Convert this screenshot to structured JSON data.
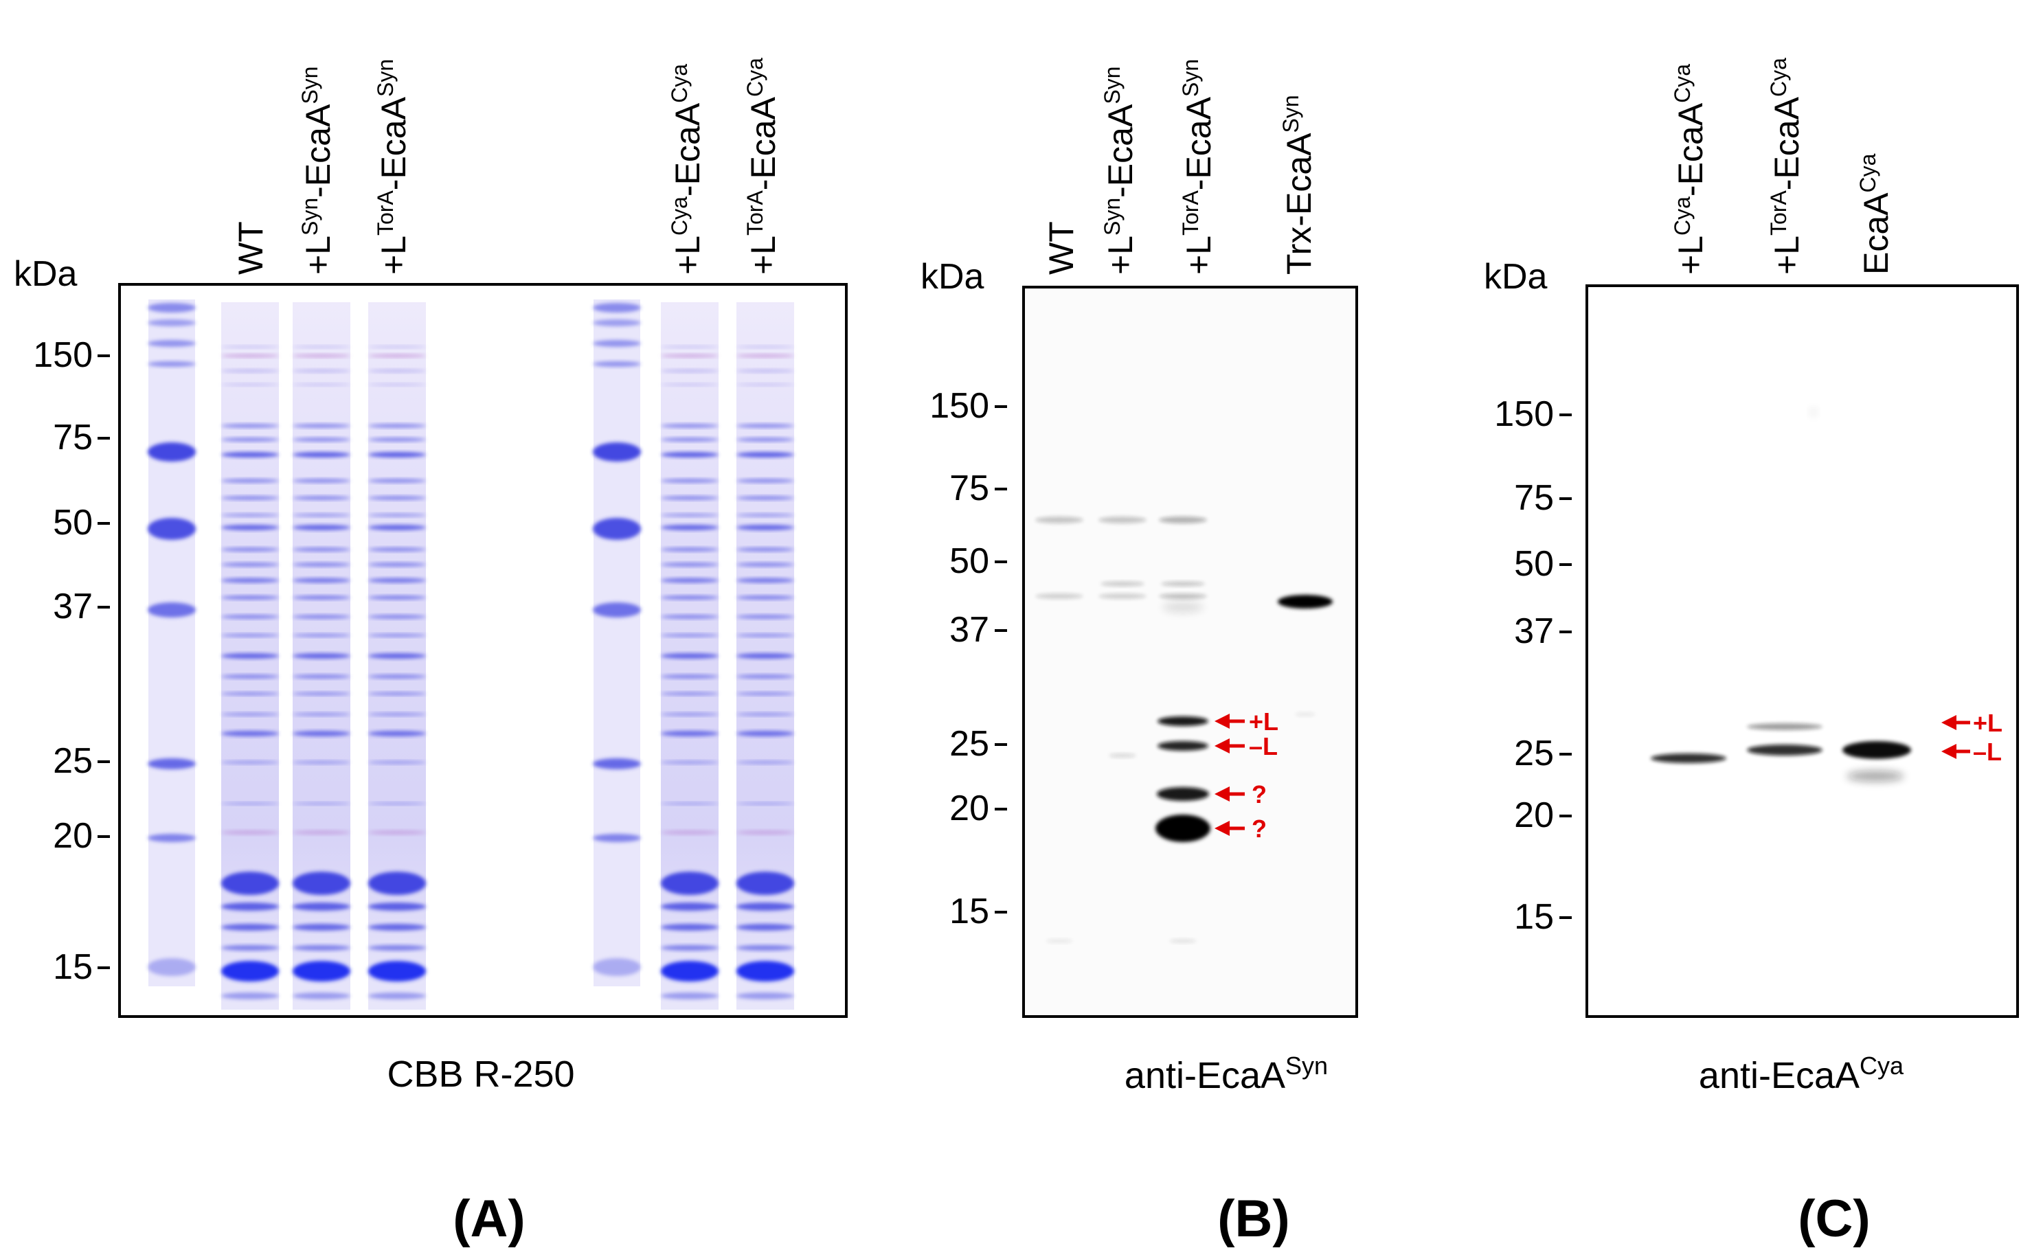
{
  "colors": {
    "coomassie": "#3a3fe0",
    "coomassie_light": "#8f86e8",
    "western": "#111111",
    "arrow": "#e00000",
    "frame": "#000000"
  },
  "panels": [
    {
      "id": "A",
      "unit_label": "kDa",
      "mw_markers": [
        "150",
        "75",
        "50",
        "37",
        "25",
        "20",
        "15"
      ],
      "lanes": [
        {
          "base": "WT",
          "parts": []
        },
        {
          "base": "+L",
          "parts": [
            {
              "sup": "Syn"
            },
            {
              "text": "-EcaA"
            },
            {
              "sup": "Syn"
            }
          ]
        },
        {
          "base": "+L",
          "parts": [
            {
              "sup": "TorA"
            },
            {
              "text": "-EcaA"
            },
            {
              "sup": "Syn"
            }
          ]
        },
        {
          "base": "+L",
          "parts": [
            {
              "sup": "Cya"
            },
            {
              "text": "-EcaA"
            },
            {
              "sup": "Cya"
            }
          ]
        },
        {
          "base": "+L",
          "parts": [
            {
              "sup": "TorA"
            },
            {
              "text": "-EcaA"
            },
            {
              "sup": "Cya"
            }
          ]
        }
      ],
      "caption": {
        "text": "CBB R-250",
        "sup": ""
      },
      "panel_label": "(A)"
    },
    {
      "id": "B",
      "unit_label": "kDa",
      "mw_markers": [
        "150",
        "75",
        "50",
        "37",
        "25",
        "20",
        "15"
      ],
      "lanes": [
        {
          "base": "WT",
          "parts": []
        },
        {
          "base": "+L",
          "parts": [
            {
              "sup": "Syn"
            },
            {
              "text": "-EcaA"
            },
            {
              "sup": "Syn"
            }
          ]
        },
        {
          "base": "+L",
          "parts": [
            {
              "sup": "TorA"
            },
            {
              "text": "-EcaA"
            },
            {
              "sup": "Syn"
            }
          ]
        },
        {
          "base": "Trx-EcaA",
          "parts": [
            {
              "sup": "Syn"
            }
          ]
        }
      ],
      "band_annotations": [
        "+L",
        "–L",
        "?",
        "?"
      ],
      "caption": {
        "text": "anti-EcaA",
        "sup": "Syn"
      },
      "panel_label": "(B)"
    },
    {
      "id": "C",
      "unit_label": "kDa",
      "mw_markers": [
        "150",
        "75",
        "50",
        "37",
        "25",
        "20",
        "15"
      ],
      "lanes": [
        {
          "base": "+L",
          "parts": [
            {
              "sup": "Cya"
            },
            {
              "text": "-EcaA"
            },
            {
              "sup": "Cya"
            }
          ]
        },
        {
          "base": "+L",
          "parts": [
            {
              "sup": "TorA"
            },
            {
              "text": "-EcaA"
            },
            {
              "sup": "Cya"
            }
          ]
        },
        {
          "base": "EcaA",
          "parts": [
            {
              "sup": "Cya"
            }
          ]
        }
      ],
      "band_annotations": [
        "+L",
        "–L"
      ],
      "caption": {
        "text": "anti-EcaA",
        "sup": "Cya"
      },
      "panel_label": "(C)"
    }
  ]
}
